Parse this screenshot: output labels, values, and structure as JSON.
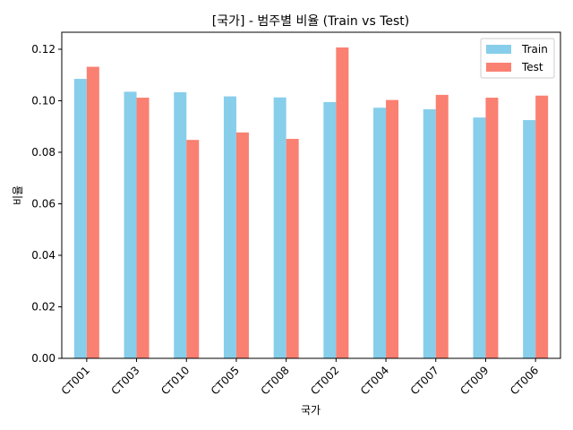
{
  "chart_data": {
    "type": "bar",
    "title": "[국가] - 범주별 비율 (Train vs Test)",
    "xlabel": "국가",
    "ylabel": "비율",
    "categories": [
      "CT001",
      "CT003",
      "CT010",
      "CT005",
      "CT008",
      "CT002",
      "CT004",
      "CT007",
      "CT009",
      "CT006"
    ],
    "series": [
      {
        "name": "Train",
        "color": "#87ceeb",
        "values": [
          0.1085,
          0.1035,
          0.1033,
          0.1017,
          0.1013,
          0.0995,
          0.0973,
          0.0967,
          0.0935,
          0.0925
        ]
      },
      {
        "name": "Test",
        "color": "#fa8072",
        "values": [
          0.1132,
          0.1012,
          0.0848,
          0.0877,
          0.0852,
          0.1207,
          0.1003,
          0.1023,
          0.1012,
          0.102
        ]
      }
    ],
    "ylim": [
      0,
      0.1266
    ],
    "yticks": [
      "0.00",
      "0.02",
      "0.04",
      "0.06",
      "0.08",
      "0.10",
      "0.12"
    ],
    "ytick_values": [
      0,
      0.02,
      0.04,
      0.06,
      0.08,
      0.1,
      0.12
    ],
    "legend_position": "top-right",
    "grid": false
  }
}
